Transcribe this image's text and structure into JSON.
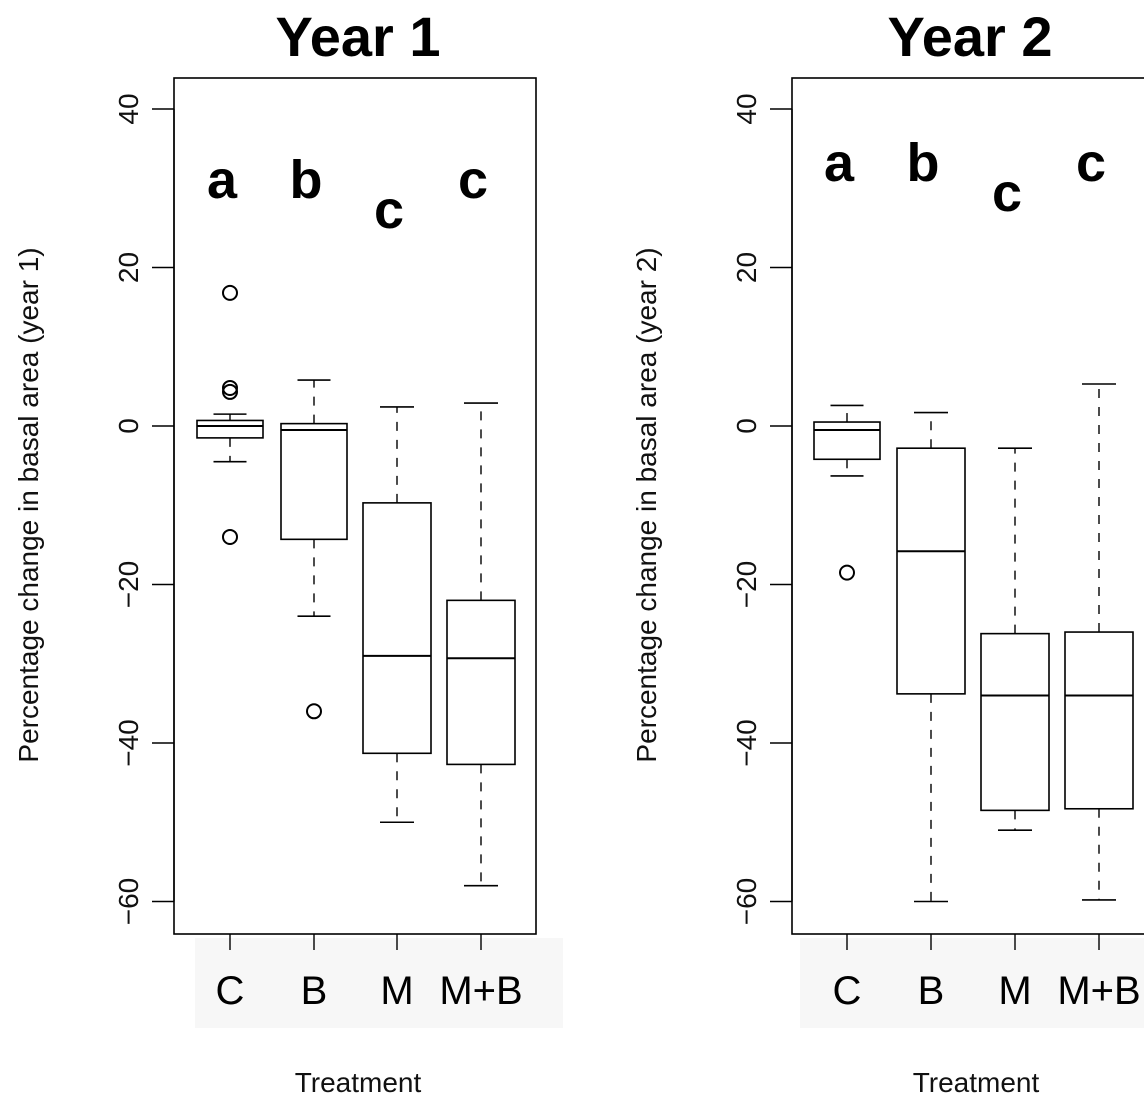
{
  "chart_data": [
    {
      "type": "boxplot",
      "title": "Year 1",
      "xlabel": "Treatment",
      "ylabel": "Percentage change in basal area (year 1)",
      "ylim": [
        -64,
        44
      ],
      "yticks": [
        "40",
        "20",
        "0",
        "−20",
        "−40",
        "−60"
      ],
      "ytick_values": [
        40,
        20,
        0,
        -20,
        -40,
        -60
      ],
      "categories": [
        "C",
        "B",
        "M",
        "M+B"
      ],
      "boxes": [
        {
          "name": "C",
          "whisker_low": -4.5,
          "q1": -1.5,
          "median": 0,
          "q3": 0.7,
          "whisker_high": 1.5,
          "outliers": [
            16.8,
            4.8,
            4.3,
            -14
          ]
        },
        {
          "name": "B",
          "whisker_low": -24,
          "q1": -14.3,
          "median": -0.5,
          "q3": 0.3,
          "whisker_high": 5.8,
          "outliers": [
            -36
          ]
        },
        {
          "name": "M",
          "whisker_low": -50,
          "q1": -41.3,
          "median": -29,
          "q3": -9.7,
          "whisker_high": 2.4,
          "outliers": []
        },
        {
          "name": "M+B",
          "whisker_low": -58,
          "q1": -42.7,
          "median": -29.3,
          "q3": -22,
          "whisker_high": 2.9,
          "outliers": []
        }
      ],
      "significance_letters": [
        "a",
        "b",
        "c",
        "c"
      ]
    },
    {
      "type": "boxplot",
      "title": "Year 2",
      "xlabel": "Treatment",
      "ylabel": "Percentage change in basal area (year 2)",
      "ylim": [
        -64,
        44
      ],
      "yticks": [
        "40",
        "20",
        "0",
        "−20",
        "−40",
        "−60"
      ],
      "ytick_values": [
        40,
        20,
        0,
        -20,
        -40,
        -60
      ],
      "categories": [
        "C",
        "B",
        "M",
        "M+B"
      ],
      "boxes": [
        {
          "name": "C",
          "whisker_low": -6.3,
          "q1": -4.2,
          "median": -0.5,
          "q3": 0.5,
          "whisker_high": 2.6,
          "outliers": [
            -18.5
          ]
        },
        {
          "name": "B",
          "whisker_low": -60,
          "q1": -33.8,
          "median": -15.8,
          "q3": -2.8,
          "whisker_high": 1.7,
          "outliers": []
        },
        {
          "name": "M",
          "whisker_low": -51,
          "q1": -48.5,
          "median": -34,
          "q3": -26.2,
          "whisker_high": -2.8,
          "outliers": []
        },
        {
          "name": "M+B",
          "whisker_low": -59.8,
          "q1": -48.3,
          "median": -34,
          "q3": -26,
          "whisker_high": 5.3,
          "outliers": []
        }
      ],
      "significance_letters": [
        "a",
        "b",
        "c",
        "c"
      ]
    }
  ]
}
